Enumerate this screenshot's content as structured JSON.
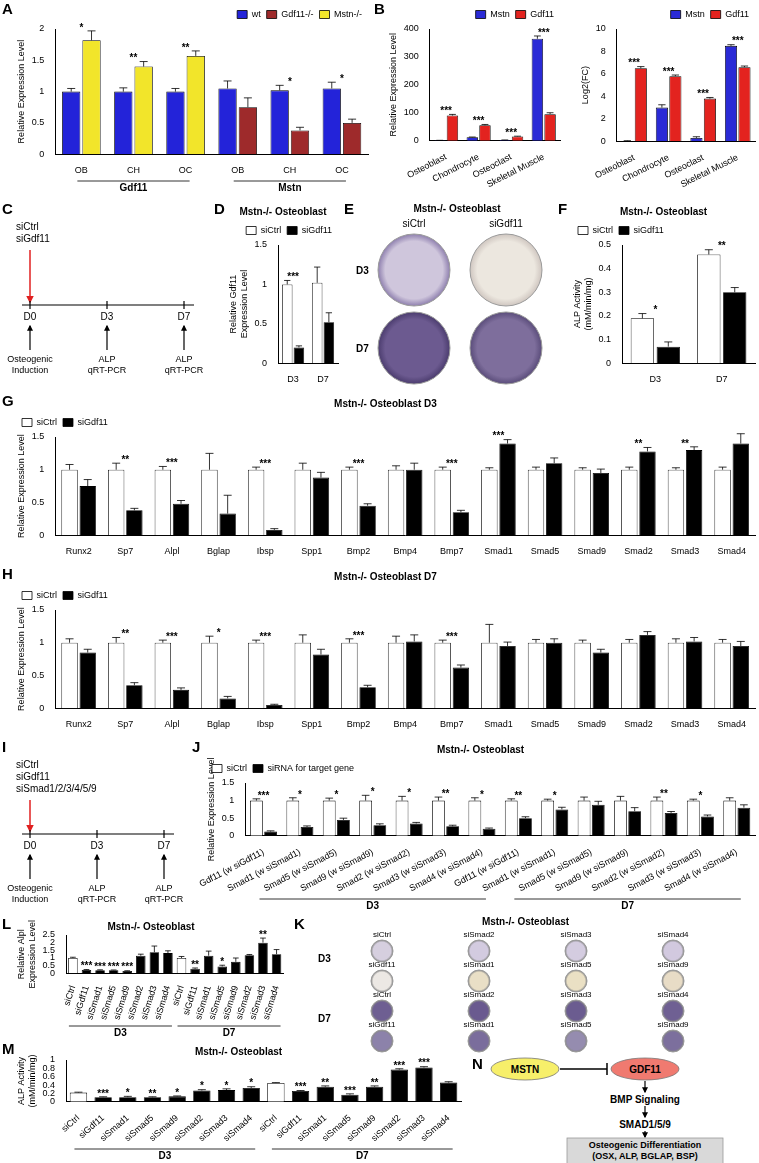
{
  "chart_data": [
    {
      "panel_label": "A",
      "type": "bar",
      "y_label": "Relative Expression Level",
      "groups": [
        {
          "name": "Gdf11",
          "categories": [
            "OB",
            "CH",
            "OC"
          ]
        },
        {
          "name": "Mstn",
          "categories": [
            "OB",
            "CH",
            "OC"
          ]
        }
      ],
      "series": [
        {
          "name": "wt",
          "color": "#2323d9",
          "values": [
            1,
            1,
            1,
            1.05,
            1.02,
            1.05
          ],
          "errors": [
            0.05,
            0.06,
            0.05,
            0.12,
            0.08,
            0.1
          ]
        },
        {
          "name": "Gdf11-/-",
          "color": "#9e2a2b",
          "values": [
            null,
            null,
            null,
            0.75,
            0.38,
            0.5
          ],
          "errors": [
            null,
            null,
            null,
            0.15,
            0.05,
            0.06
          ]
        },
        {
          "name": "Mstn-/-",
          "color": "#f2e52a",
          "values": [
            1.82,
            1.4,
            1.57,
            null,
            null,
            null
          ],
          "errors": [
            0.15,
            0.08,
            0.08,
            null,
            null,
            null
          ]
        }
      ],
      "significance": [
        "*",
        "**",
        "**",
        null,
        "*",
        "*"
      ],
      "ylim": [
        0,
        2
      ],
      "yticks": [
        0,
        0.5,
        1,
        1.5,
        2
      ],
      "legend": "top-right",
      "grid": false
    },
    {
      "panel_label": "B",
      "type": "bar",
      "y_label": "Relative Expression Level",
      "categories": [
        "Osteoblast",
        "Chondrocyte",
        "Osteoclast",
        "Skeletal Muscle"
      ],
      "series": [
        {
          "name": "Mstn",
          "color": "#2a2ad6",
          "values": [
            1,
            12,
            2,
            365
          ],
          "errors": [
            0.2,
            1,
            0.5,
            10
          ]
        },
        {
          "name": "Gdf11",
          "color": "#e3231f",
          "values": [
            90,
            55,
            15,
            95
          ],
          "errors": [
            4,
            3,
            1,
            5
          ]
        }
      ],
      "significance": [
        "***",
        "***",
        "***",
        "***"
      ],
      "ylim": [
        0,
        400
      ],
      "yticks": [
        0,
        100,
        200,
        300,
        400
      ],
      "legend": "top-right",
      "grid": false
    },
    {
      "type": "bar",
      "y_label": "Log2(FC)",
      "categories": [
        "Osteoblast",
        "Chondrocyte",
        "Osteoclast",
        "Skeletal Muscle"
      ],
      "series": [
        {
          "name": "Mstn",
          "color": "#2a2ad6",
          "values": [
            0,
            3,
            0.3,
            8.5
          ],
          "errors": [
            0.05,
            0.25,
            0.1,
            0.1
          ]
        },
        {
          "name": "Gdf11",
          "color": "#e3231f",
          "values": [
            6.5,
            5.8,
            3.8,
            6.6
          ],
          "errors": [
            0.15,
            0.1,
            0.1,
            0.1
          ]
        }
      ],
      "significance": [
        "***",
        "***",
        "***",
        "***"
      ],
      "ylim": [
        0,
        10
      ],
      "yticks": [
        0,
        2,
        4,
        6,
        8,
        10
      ],
      "legend": "top-right",
      "grid": false
    },
    {
      "panel_label": "D",
      "type": "bar",
      "title": "Mstn-/- Osteoblast",
      "y_label": [
        "Relative Gdf11",
        "Expression Level"
      ],
      "categories": [
        "D3",
        "D7"
      ],
      "series": [
        {
          "name": "siCtrl",
          "color": "#ffffff",
          "values": [
            1,
            1.02
          ],
          "errors": [
            0.05,
            0.2
          ]
        },
        {
          "name": "siGdf11",
          "color": "#000000",
          "values": [
            0.2,
            0.52
          ],
          "errors": [
            0.02,
            0.12
          ]
        }
      ],
      "significance": [
        "***",
        null
      ],
      "ylim": [
        0,
        1.5
      ],
      "yticks": [
        0,
        0.5,
        1,
        1.5
      ],
      "legend": "top-right",
      "grid": false
    },
    {
      "panel_label": "F",
      "type": "bar",
      "title": "Mstn-/- Osteoblast",
      "y_label": [
        "ALP Activity",
        "(mM/min/mg)"
      ],
      "categories": [
        "D3",
        "D7"
      ],
      "series": [
        {
          "name": "siCtrl",
          "color": "#ffffff",
          "values": [
            0.19,
            0.46
          ],
          "errors": [
            0.02,
            0.02
          ]
        },
        {
          "name": "siGdf11",
          "color": "#000000",
          "values": [
            0.07,
            0.3
          ],
          "errors": [
            0.02,
            0.02
          ]
        }
      ],
      "significance": [
        "*",
        "**"
      ],
      "ylim": [
        0,
        0.5
      ],
      "yticks": [
        0,
        0.1,
        0.2,
        0.3,
        0.4,
        0.5
      ],
      "legend": "top-left",
      "grid": false
    },
    {
      "panel_label": "G",
      "type": "bar",
      "title": "Mstn-/- Osteoblast D3",
      "y_label": "Relative Expression Level",
      "categories": [
        "Runx2",
        "Sp7",
        "Alpl",
        "Bglap",
        "Ibsp",
        "Spp1",
        "Bmp2",
        "Bmp4",
        "Bmp7",
        "Smad1",
        "Smad5",
        "Smad9",
        "Smad2",
        "Smad3",
        "Smad4"
      ],
      "series": [
        {
          "name": "siCtrl",
          "color": "#ffffff",
          "values": [
            1,
            1,
            1,
            1,
            1,
            1,
            1,
            1,
            1,
            1,
            1,
            1,
            1,
            1,
            1
          ],
          "errors": [
            0.08,
            0.1,
            0.05,
            0.25,
            0.04,
            0.1,
            0.04,
            0.06,
            0.04,
            0.03,
            0.04,
            0.03,
            0.04,
            0.03,
            0.04
          ]
        },
        {
          "name": "siGdf11",
          "color": "#000000",
          "values": [
            0.75,
            0.38,
            0.48,
            0.33,
            0.08,
            0.88,
            0.45,
            1.0,
            0.35,
            1.4,
            1.1,
            0.95,
            1.28,
            1.3,
            1.4
          ],
          "errors": [
            0.1,
            0.03,
            0.05,
            0.28,
            0.02,
            0.08,
            0.03,
            0.1,
            0.03,
            0.06,
            0.08,
            0.06,
            0.06,
            0.05,
            0.15
          ]
        }
      ],
      "significance": [
        null,
        "**",
        "***",
        null,
        "***",
        null,
        "***",
        null,
        "***",
        "***",
        null,
        null,
        "**",
        "**",
        null
      ],
      "ylim": [
        0,
        1.5
      ],
      "yticks": [
        0,
        0.5,
        1,
        1.5
      ],
      "legend": "top-left",
      "grid": false
    },
    {
      "panel_label": "H",
      "type": "bar",
      "title": "Mstn-/- Osteoblast D7",
      "y_label": "Relative Expression Level",
      "categories": [
        "Runx2",
        "Sp7",
        "Alpl",
        "Bglap",
        "Ibsp",
        "Spp1",
        "Bmp2",
        "Bmp4",
        "Bmp7",
        "Smad1",
        "Smad5",
        "Smad9",
        "Smad2",
        "Smad3",
        "Smad4"
      ],
      "series": [
        {
          "name": "siCtrl",
          "color": "#ffffff",
          "values": [
            1,
            1,
            1,
            1,
            1,
            1,
            1,
            1,
            1,
            1,
            1,
            1,
            1,
            1,
            1
          ],
          "errors": [
            0.06,
            0.08,
            0.04,
            0.1,
            0.04,
            0.12,
            0.06,
            0.1,
            0.04,
            0.28,
            0.05,
            0.04,
            0.05,
            0.06,
            0.05
          ]
        },
        {
          "name": "siGdf11",
          "color": "#000000",
          "values": [
            0.85,
            0.35,
            0.28,
            0.15,
            0.05,
            0.82,
            0.32,
            1.02,
            0.62,
            0.95,
            1.0,
            0.85,
            1.12,
            1.02,
            0.95
          ],
          "errors": [
            0.05,
            0.04,
            0.03,
            0.03,
            0.01,
            0.08,
            0.03,
            0.1,
            0.04,
            0.06,
            0.06,
            0.05,
            0.05,
            0.06,
            0.07
          ]
        }
      ],
      "significance": [
        null,
        "**",
        "***",
        "*",
        "***",
        null,
        "***",
        null,
        "***",
        null,
        null,
        null,
        null,
        null,
        null
      ],
      "ylim": [
        0,
        1.5
      ],
      "yticks": [
        0,
        0.5,
        1,
        1.5
      ],
      "legend": "top-left",
      "grid": false
    },
    {
      "panel_label": "J",
      "type": "bar",
      "title": "Mstn-/- Osteoblast",
      "y_label": "Relative Expression Level",
      "groups": [
        {
          "name": "D3",
          "categories": [
            "Gdf11 (w siGdf11)",
            "Smad1 (w siSmad1)",
            "Smad5 (w siSmad5)",
            "Smad9 (w siSmad9)",
            "Smad2 (w siSmad2)",
            "Smad3 (w siSmad3)",
            "Smad4 (w siSmad4)"
          ]
        },
        {
          "name": "D7",
          "categories": [
            "Gdf11 (w siGdf11)",
            "Smad1 (w siSmad1)",
            "Smad5 (w siSmad5)",
            "Smad9 (w siSmad9)",
            "Smad2 (w siSmad2)",
            "Smad3 (w siSmad3)",
            "Smad4 (w siSmad4)"
          ]
        }
      ],
      "series": [
        {
          "name": "siCtrl",
          "color": "#ffffff",
          "values": [
            1,
            1,
            1,
            1,
            1,
            1,
            1,
            1,
            1,
            1,
            1,
            1,
            1,
            1
          ],
          "errors": [
            0.05,
            0.08,
            0.07,
            0.15,
            0.12,
            0.1,
            0.08,
            0.05,
            0.04,
            0.1,
            0.12,
            0.1,
            0.04,
            0.08
          ]
        },
        {
          "name": "siRNA for target gene",
          "color": "#000000",
          "values": [
            0.12,
            0.25,
            0.45,
            0.3,
            0.35,
            0.27,
            0.2,
            0.5,
            0.75,
            0.88,
            0.7,
            0.65,
            0.55,
            0.8
          ],
          "errors": [
            0.02,
            0.03,
            0.05,
            0.04,
            0.03,
            0.03,
            0.02,
            0.04,
            0.06,
            0.1,
            0.1,
            0.04,
            0.04,
            0.08
          ]
        }
      ],
      "significance": [
        "***",
        "*",
        "*",
        "*",
        "*",
        "**",
        "*",
        "**",
        "*",
        null,
        null,
        "**",
        "*",
        null
      ],
      "ylim": [
        0,
        1.5
      ],
      "yticks": [
        0,
        0.5,
        1,
        1.5
      ],
      "legend": "top-left",
      "grid": false
    },
    {
      "panel_label": "L",
      "type": "bar",
      "title": "Mstn-/- Osteoblast",
      "y_label": [
        "Relative Alpl",
        "Expression Level"
      ],
      "groups": [
        {
          "name": "D3",
          "categories": [
            "siCtrl",
            "siGdf11",
            "siSmad1",
            "siSmad5",
            "siSmad9",
            "siSmad2",
            "siSmad3",
            "siSmad4"
          ]
        },
        {
          "name": "D7",
          "categories": [
            "siCtrl",
            "siGdf11",
            "siSmad1",
            "siSmad5",
            "siSmad9",
            "siSmad2",
            "siSmad3",
            "siSmad4"
          ]
        }
      ],
      "series": [
        {
          "colors": [
            "#ffffff",
            "#000000",
            "#000000",
            "#000000",
            "#000000",
            "#000000",
            "#000000",
            "#000000",
            "#ffffff",
            "#000000",
            "#000000",
            "#000000",
            "#000000",
            "#000000",
            "#000000",
            "#000000"
          ],
          "values": [
            1,
            0.22,
            0.2,
            0.2,
            0.15,
            1.15,
            1.38,
            1.32,
            1,
            0.3,
            1.15,
            0.45,
            0.75,
            1.18,
            2.0,
            1.25
          ],
          "errors": [
            0.05,
            0.03,
            0.03,
            0.02,
            0.02,
            0.1,
            0.4,
            0.15,
            0.1,
            0.05,
            0.3,
            0.08,
            0.25,
            0.05,
            0.3,
            0.3
          ]
        }
      ],
      "significance": [
        null,
        "***",
        "***",
        "***",
        "***",
        null,
        null,
        null,
        null,
        "**",
        null,
        "*",
        null,
        null,
        "**",
        null
      ],
      "ylim": [
        0,
        2.5
      ],
      "yticks": [
        0,
        0.5,
        1,
        1.5,
        2,
        2.5
      ],
      "grid": false
    },
    {
      "panel_label": "M",
      "type": "bar",
      "title": "Mstn-/- Osteoblast",
      "y_label": [
        "ALP Activity",
        "(mM/min/mg)"
      ],
      "groups": [
        {
          "name": "D3",
          "categories": [
            "siCtrl",
            "siGdf11",
            "siSmad1",
            "siSmad5",
            "siSmad9",
            "siSmad2",
            "siSmad3",
            "siSmad4"
          ]
        },
        {
          "name": "D7",
          "categories": [
            "siCtrl",
            "siGdf11",
            "siSmad1",
            "siSmad5",
            "siSmad9",
            "siSmad2",
            "siSmad3",
            "siSmad4"
          ]
        }
      ],
      "series": [
        {
          "colors": [
            "#ffffff",
            "#000000",
            "#000000",
            "#000000",
            "#000000",
            "#000000",
            "#000000",
            "#000000",
            "#ffffff",
            "#000000",
            "#000000",
            "#000000",
            "#000000",
            "#000000",
            "#000000",
            "#000000"
          ],
          "values": [
            0.22,
            0.11,
            0.11,
            0.11,
            0.13,
            0.27,
            0.28,
            0.33,
            0.45,
            0.26,
            0.36,
            0.17,
            0.36,
            0.77,
            0.82,
            0.46
          ],
          "errors": [
            0.01,
            0.01,
            0.02,
            0.01,
            0.01,
            0.02,
            0.03,
            0.03,
            0.01,
            0.01,
            0.02,
            0.02,
            0.02,
            0.02,
            0.02,
            0.02
          ]
        }
      ],
      "significance": [
        null,
        "***",
        "*",
        "**",
        "*",
        "*",
        "*",
        "*",
        null,
        "***",
        "**",
        "***",
        "**",
        "***",
        "***",
        null
      ],
      "ylim": [
        0,
        1
      ],
      "yticks": [
        0,
        0.2,
        0.4,
        0.6,
        0.8,
        1
      ],
      "grid": false
    }
  ],
  "diagrams": [
    {
      "panel_label": "C",
      "type": "timeline",
      "treatments": [
        "siCtrl",
        "siGdf11"
      ],
      "timepoints": [
        "D0",
        "D3",
        "D7"
      ],
      "events": [
        [
          "Osteogenic",
          "Induction"
        ],
        [
          "ALP",
          "qRT-PCR"
        ],
        [
          "ALP",
          "qRT-PCR"
        ]
      ]
    },
    {
      "panel_label": "E",
      "type": "plates",
      "title": "Mstn-/- Osteoblast",
      "columns": [
        "siCtrl",
        "siGdf11"
      ],
      "rows": [
        "D3",
        "D7"
      ]
    },
    {
      "panel_label": "I",
      "type": "timeline",
      "treatments": [
        "siCtrl",
        "siGdf11",
        "siSmad1/2/3/4/5/9"
      ],
      "timepoints": [
        "D0",
        "D3",
        "D7"
      ],
      "events": [
        [
          "Osteogenic",
          "Induction"
        ],
        [
          "ALP",
          "qRT-PCR"
        ],
        [
          "ALP",
          "qRT-PCR"
        ]
      ]
    },
    {
      "panel_label": "K",
      "type": "plate_grid",
      "title": "Mstn-/- Osteoblast",
      "rows": [
        {
          "name": "D3",
          "plates": [
            [
              "siCtrl",
              "siSmad2",
              "siSmad3",
              "siSmad4"
            ],
            [
              "siGdf11",
              "siSmad1",
              "siSmad5",
              "siSmad9"
            ]
          ]
        },
        {
          "name": "D7",
          "plates": [
            [
              "siCtrl",
              "siSmad2",
              "siSmad3",
              "siSmad4"
            ],
            [
              "siGdf11",
              "siSmad1",
              "siSmad5",
              "siSmad9"
            ]
          ]
        }
      ]
    },
    {
      "panel_label": "N",
      "type": "pathway",
      "inhibitor": "MSTN",
      "target": "GDF11",
      "steps": [
        "BMP Signaling",
        "SMAD1/5/9"
      ],
      "outcome": [
        "Osteogenic Differentiation",
        "(OSX, ALP, BGLAP, BSP)"
      ]
    }
  ]
}
